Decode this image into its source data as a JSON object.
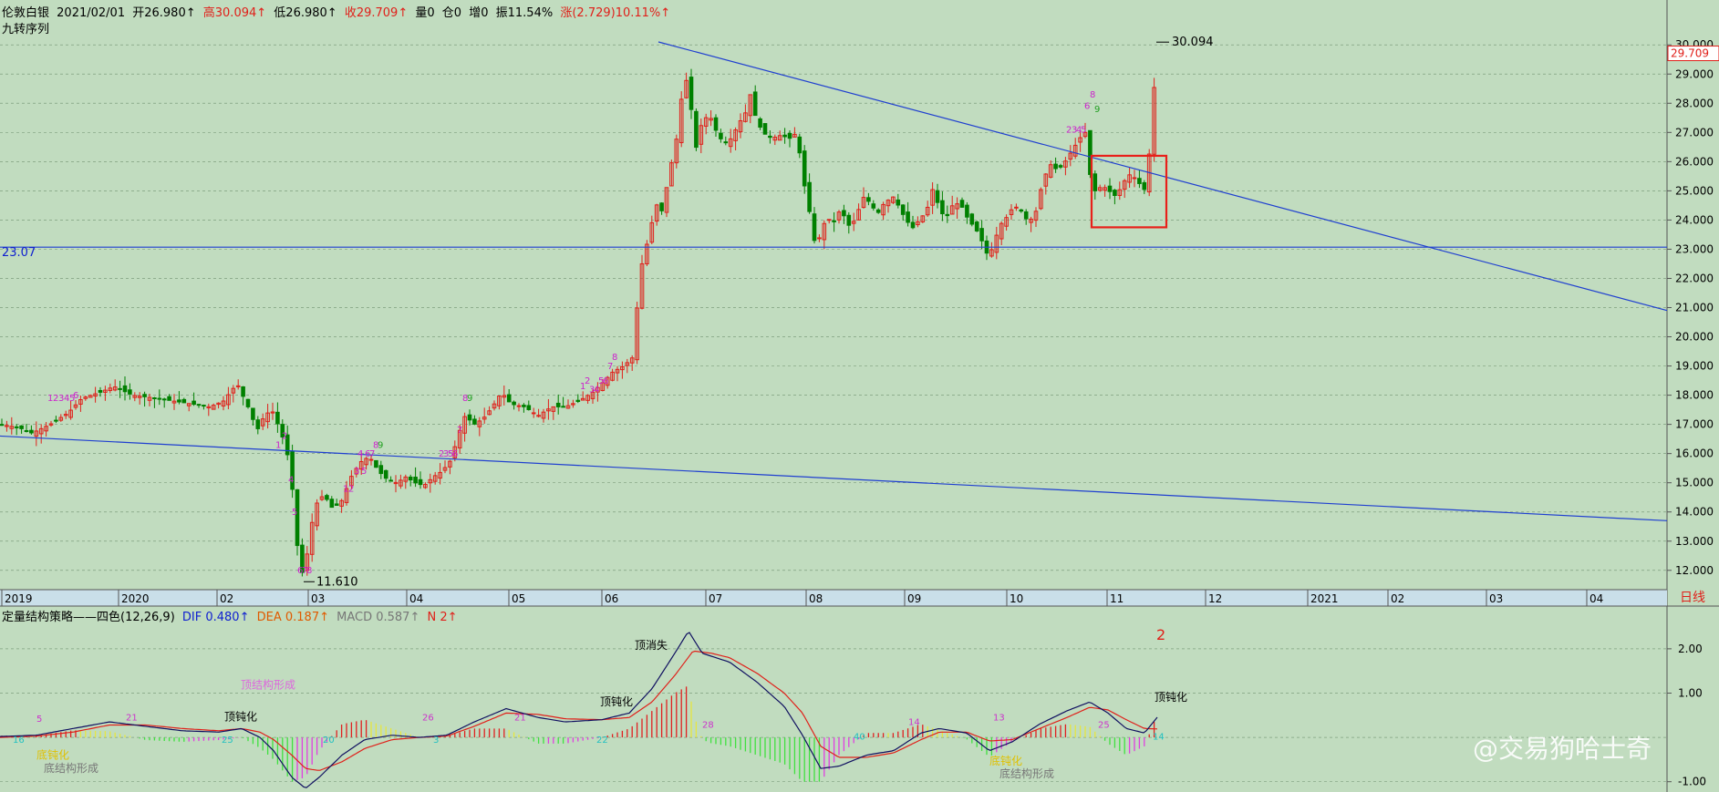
{
  "header": {
    "instrument": "伦敦白银",
    "date": "2021/02/01",
    "open": "开26.980↑",
    "high": "高30.094↑",
    "low": "低26.980↑",
    "close": "收29.709↑",
    "volume": "量0",
    "position": "仓0",
    "increase": "增0",
    "amplitude": "振11.54%",
    "change": "涨(2.729)10.11%↑"
  },
  "indicator_label": "九转序列",
  "macd_header": {
    "name": "定量结构策略——四色(12,26,9)",
    "dif": "DIF 0.480↑",
    "dea": "DEA 0.187↑",
    "macd": "MACD 0.587↑",
    "n": "N 2↑"
  },
  "period_label": "日线",
  "watermark": "@交易狗哈士奇",
  "colors": {
    "background": "#c1dcbf",
    "up": "#e0201a",
    "down": "#008000",
    "trendline": "#1f3fd0",
    "box": "#e8201a"
  },
  "chart_data": {
    "type": "candlestick",
    "ylim": [
      11.4,
      30.6
    ],
    "y_ticks": [
      "12.000",
      "13.000",
      "14.000",
      "15.000",
      "16.000",
      "17.000",
      "18.000",
      "19.000",
      "20.000",
      "21.000",
      "22.000",
      "23.000",
      "24.000",
      "25.000",
      "26.000",
      "27.000",
      "28.000",
      "29.000",
      "30.000"
    ],
    "x_labels": [
      "2019",
      "2020",
      "02",
      "03",
      "04",
      "05",
      "06",
      "07",
      "08",
      "09",
      "10",
      "11",
      "12",
      "2021",
      "02",
      "03",
      "04"
    ],
    "current_price": "29.709",
    "horizontal_line": {
      "value": 23.07,
      "label": "23.07"
    },
    "annotations": [
      {
        "label": "30.094",
        "value": 30.094
      },
      {
        "label": "11.610",
        "value": 11.61
      }
    ],
    "price_waypoints": [
      [
        0,
        17.0
      ],
      [
        20,
        16.9
      ],
      [
        35,
        16.7
      ],
      [
        55,
        17.0
      ],
      [
        75,
        17.4
      ],
      [
        90,
        17.9
      ],
      [
        110,
        18.1
      ],
      [
        125,
        18.3
      ],
      [
        145,
        18.0
      ],
      [
        170,
        17.9
      ],
      [
        190,
        17.8
      ],
      [
        210,
        17.7
      ],
      [
        230,
        17.6
      ],
      [
        245,
        17.8
      ],
      [
        260,
        18.4
      ],
      [
        272,
        17.6
      ],
      [
        282,
        16.8
      ],
      [
        290,
        17.3
      ],
      [
        298,
        17.5
      ],
      [
        306,
        16.9
      ],
      [
        314,
        16.2
      ],
      [
        320,
        15.0
      ],
      [
        324,
        13.5
      ],
      [
        328,
        12.2
      ],
      [
        333,
        11.8
      ],
      [
        338,
        12.8
      ],
      [
        345,
        14.2
      ],
      [
        355,
        14.6
      ],
      [
        365,
        14.1
      ],
      [
        375,
        14.4
      ],
      [
        385,
        15.2
      ],
      [
        395,
        15.7
      ],
      [
        405,
        15.9
      ],
      [
        415,
        15.4
      ],
      [
        425,
        15.1
      ],
      [
        435,
        15.0
      ],
      [
        445,
        15.2
      ],
      [
        455,
        15.0
      ],
      [
        465,
        14.9
      ],
      [
        475,
        15.2
      ],
      [
        485,
        15.4
      ],
      [
        495,
        15.8
      ],
      [
        502,
        16.6
      ],
      [
        510,
        17.3
      ],
      [
        520,
        17.0
      ],
      [
        530,
        17.2
      ],
      [
        540,
        17.6
      ],
      [
        550,
        18.1
      ],
      [
        560,
        17.7
      ],
      [
        575,
        17.6
      ],
      [
        590,
        17.3
      ],
      [
        605,
        17.6
      ],
      [
        620,
        17.6
      ],
      [
        635,
        17.8
      ],
      [
        650,
        18.1
      ],
      [
        660,
        18.4
      ],
      [
        672,
        18.8
      ],
      [
        684,
        19.0
      ],
      [
        694,
        19.3
      ],
      [
        700,
        21.5
      ],
      [
        706,
        23.0
      ],
      [
        712,
        23.3
      ],
      [
        718,
        24.6
      ],
      [
        726,
        24.3
      ],
      [
        734,
        25.6
      ],
      [
        742,
        26.8
      ],
      [
        749,
        28.6
      ],
      [
        755,
        28.9
      ],
      [
        762,
        26.3
      ],
      [
        770,
        27.4
      ],
      [
        778,
        27.6
      ],
      [
        786,
        27.0
      ],
      [
        794,
        26.6
      ],
      [
        802,
        26.8
      ],
      [
        810,
        27.3
      ],
      [
        818,
        27.7
      ],
      [
        822,
        28.4
      ],
      [
        828,
        27.6
      ],
      [
        836,
        27.0
      ],
      [
        846,
        26.8
      ],
      [
        856,
        26.9
      ],
      [
        866,
        26.8
      ],
      [
        874,
        27.0
      ],
      [
        878,
        26.0
      ],
      [
        882,
        25.2
      ],
      [
        887,
        24.4
      ],
      [
        893,
        23.3
      ],
      [
        899,
        23.4
      ],
      [
        906,
        24.1
      ],
      [
        914,
        23.9
      ],
      [
        922,
        24.4
      ],
      [
        930,
        23.8
      ],
      [
        938,
        24.0
      ],
      [
        946,
        24.8
      ],
      [
        954,
        24.6
      ],
      [
        962,
        24.2
      ],
      [
        970,
        24.6
      ],
      [
        980,
        24.8
      ],
      [
        990,
        24.2
      ],
      [
        1000,
        23.7
      ],
      [
        1008,
        24.0
      ],
      [
        1016,
        24.3
      ],
      [
        1024,
        25.2
      ],
      [
        1030,
        24.3
      ],
      [
        1038,
        24.1
      ],
      [
        1046,
        24.6
      ],
      [
        1054,
        24.5
      ],
      [
        1062,
        24.0
      ],
      [
        1070,
        23.7
      ],
      [
        1078,
        23.2
      ],
      [
        1084,
        22.7
      ],
      [
        1090,
        23.2
      ],
      [
        1096,
        23.8
      ],
      [
        1104,
        24.1
      ],
      [
        1112,
        24.5
      ],
      [
        1120,
        24.3
      ],
      [
        1128,
        23.9
      ],
      [
        1136,
        24.3
      ],
      [
        1144,
        25.4
      ],
      [
        1152,
        25.9
      ],
      [
        1160,
        25.7
      ],
      [
        1168,
        26.0
      ],
      [
        1176,
        26.4
      ],
      [
        1184,
        26.8
      ],
      [
        1190,
        27.0
      ],
      [
        1196,
        25.4
      ],
      [
        1202,
        24.9
      ],
      [
        1208,
        25.2
      ],
      [
        1216,
        25.0
      ],
      [
        1224,
        24.8
      ],
      [
        1232,
        25.3
      ],
      [
        1240,
        25.6
      ],
      [
        1248,
        25.3
      ],
      [
        1256,
        25.0
      ],
      [
        1262,
        26.8
      ],
      [
        1268,
        29.7
      ]
    ],
    "macd_ylim": [
      -1.15,
      2.45
    ],
    "macd_ticks": [
      "-1.00",
      "1.00",
      "2.00"
    ],
    "macd_dif_waypoints": [
      [
        0,
        0.02
      ],
      [
        40,
        0.05
      ],
      [
        80,
        0.2
      ],
      [
        120,
        0.35
      ],
      [
        160,
        0.25
      ],
      [
        200,
        0.15
      ],
      [
        240,
        0.12
      ],
      [
        265,
        0.2
      ],
      [
        285,
        0.0
      ],
      [
        300,
        -0.3
      ],
      [
        320,
        -0.9
      ],
      [
        335,
        -1.15
      ],
      [
        350,
        -0.9
      ],
      [
        375,
        -0.4
      ],
      [
        400,
        -0.05
      ],
      [
        430,
        0.05
      ],
      [
        460,
        0.0
      ],
      [
        490,
        0.05
      ],
      [
        520,
        0.35
      ],
      [
        555,
        0.65
      ],
      [
        590,
        0.45
      ],
      [
        620,
        0.35
      ],
      [
        660,
        0.4
      ],
      [
        690,
        0.55
      ],
      [
        715,
        1.1
      ],
      [
        740,
        1.9
      ],
      [
        755,
        2.4
      ],
      [
        770,
        1.9
      ],
      [
        800,
        1.7
      ],
      [
        830,
        1.25
      ],
      [
        860,
        0.7
      ],
      [
        880,
        0.05
      ],
      [
        900,
        -0.7
      ],
      [
        920,
        -0.65
      ],
      [
        950,
        -0.4
      ],
      [
        980,
        -0.3
      ],
      [
        1010,
        0.1
      ],
      [
        1030,
        0.2
      ],
      [
        1060,
        0.1
      ],
      [
        1085,
        -0.3
      ],
      [
        1110,
        -0.1
      ],
      [
        1140,
        0.3
      ],
      [
        1170,
        0.6
      ],
      [
        1195,
        0.8
      ],
      [
        1215,
        0.55
      ],
      [
        1235,
        0.2
      ],
      [
        1255,
        0.1
      ],
      [
        1270,
        0.48
      ]
    ],
    "macd_dea_waypoints": [
      [
        0,
        0.0
      ],
      [
        40,
        0.03
      ],
      [
        80,
        0.12
      ],
      [
        120,
        0.28
      ],
      [
        160,
        0.28
      ],
      [
        200,
        0.2
      ],
      [
        240,
        0.15
      ],
      [
        265,
        0.2
      ],
      [
        285,
        0.12
      ],
      [
        300,
        -0.05
      ],
      [
        320,
        -0.4
      ],
      [
        335,
        -0.7
      ],
      [
        350,
        -0.75
      ],
      [
        375,
        -0.55
      ],
      [
        400,
        -0.25
      ],
      [
        430,
        -0.05
      ],
      [
        460,
        0.0
      ],
      [
        490,
        0.03
      ],
      [
        520,
        0.25
      ],
      [
        555,
        0.55
      ],
      [
        590,
        0.52
      ],
      [
        620,
        0.42
      ],
      [
        660,
        0.4
      ],
      [
        690,
        0.45
      ],
      [
        715,
        0.8
      ],
      [
        740,
        1.4
      ],
      [
        760,
        1.95
      ],
      [
        780,
        1.9
      ],
      [
        800,
        1.8
      ],
      [
        830,
        1.45
      ],
      [
        860,
        1.0
      ],
      [
        880,
        0.55
      ],
      [
        900,
        -0.2
      ],
      [
        920,
        -0.45
      ],
      [
        950,
        -0.45
      ],
      [
        980,
        -0.35
      ],
      [
        1010,
        -0.05
      ],
      [
        1030,
        0.12
      ],
      [
        1060,
        0.12
      ],
      [
        1085,
        -0.08
      ],
      [
        1110,
        -0.05
      ],
      [
        1140,
        0.2
      ],
      [
        1170,
        0.45
      ],
      [
        1195,
        0.68
      ],
      [
        1215,
        0.62
      ],
      [
        1235,
        0.4
      ],
      [
        1255,
        0.2
      ],
      [
        1270,
        0.19
      ]
    ],
    "td_labels": [
      {
        "text": "1",
        "x": 52,
        "v": 17.8
      },
      {
        "text": "2",
        "x": 58,
        "v": 17.8
      },
      {
        "text": "3",
        "x": 64,
        "v": 17.8
      },
      {
        "text": "4",
        "x": 70,
        "v": 17.8
      },
      {
        "text": "5",
        "x": 76,
        "v": 17.8
      },
      {
        "text": "6",
        "x": 80,
        "v": 17.9
      },
      {
        "text": "1",
        "x": 302,
        "v": 16.2
      },
      {
        "text": "2",
        "x": 309,
        "v": 16.5
      },
      {
        "text": "4",
        "x": 316,
        "v": 15.0
      },
      {
        "text": "5",
        "x": 320,
        "v": 13.9
      },
      {
        "text": "6",
        "x": 326,
        "v": 11.9
      },
      {
        "text": "7",
        "x": 331,
        "v": 11.9
      },
      {
        "text": "8",
        "x": 336,
        "v": 11.9
      },
      {
        "text": "1",
        "x": 376,
        "v": 14.7
      },
      {
        "text": "2",
        "x": 382,
        "v": 14.7
      },
      {
        "text": "3",
        "x": 388,
        "v": 15.3
      },
      {
        "text": "4",
        "x": 392,
        "v": 15.9
      },
      {
        "text": "5",
        "x": 396,
        "v": 15.3
      },
      {
        "text": "6",
        "x": 400,
        "v": 15.9
      },
      {
        "text": "7",
        "x": 405,
        "v": 15.9
      },
      {
        "text": "8",
        "x": 409,
        "v": 16.2
      },
      {
        "text": "9",
        "x": 414,
        "v": 16.2
      },
      {
        "text": "2",
        "x": 481,
        "v": 15.9
      },
      {
        "text": "3",
        "x": 486,
        "v": 15.9
      },
      {
        "text": "5",
        "x": 491,
        "v": 15.9
      },
      {
        "text": "6",
        "x": 496,
        "v": 15.9
      },
      {
        "text": "7",
        "x": 501,
        "v": 16.7
      },
      {
        "text": "8",
        "x": 507,
        "v": 17.8
      },
      {
        "text": "9",
        "x": 512,
        "v": 17.8
      },
      {
        "text": "1",
        "x": 636,
        "v": 18.2
      },
      {
        "text": "2",
        "x": 641,
        "v": 18.4
      },
      {
        "text": "3",
        "x": 646,
        "v": 18.1
      },
      {
        "text": "4",
        "x": 651,
        "v": 18.1
      },
      {
        "text": "5",
        "x": 656,
        "v": 18.4
      },
      {
        "text": "6",
        "x": 661,
        "v": 18.4
      },
      {
        "text": "7",
        "x": 666,
        "v": 18.9
      },
      {
        "text": "8",
        "x": 671,
        "v": 19.2
      },
      {
        "text": "2",
        "x": 1169,
        "v": 27.0
      },
      {
        "text": "3",
        "x": 1175,
        "v": 27.0
      },
      {
        "text": "4",
        "x": 1180,
        "v": 27.0
      },
      {
        "text": "5",
        "x": 1185,
        "v": 27.0
      },
      {
        "text": "6",
        "x": 1189,
        "v": 27.8
      },
      {
        "text": "8",
        "x": 1195,
        "v": 28.2
      },
      {
        "text": "9",
        "x": 1200,
        "v": 27.7
      }
    ],
    "macd_labels": [
      {
        "text": "5",
        "x": 40,
        "v": 0.35,
        "c": "#cc33cc"
      },
      {
        "text": "16",
        "x": 14,
        "v": -0.12,
        "c": "#20c0c0"
      },
      {
        "text": "21",
        "x": 138,
        "v": 0.38,
        "c": "#cc33cc"
      },
      {
        "text": "25",
        "x": 243,
        "v": -0.12,
        "c": "#20c0c0"
      },
      {
        "text": "20",
        "x": 354,
        "v": -0.12,
        "c": "#20c0c0"
      },
      {
        "text": "26",
        "x": 463,
        "v": 0.38,
        "c": "#cc33cc"
      },
      {
        "text": "3",
        "x": 475,
        "v": -0.12,
        "c": "#20c0c0"
      },
      {
        "text": "21",
        "x": 564,
        "v": 0.38,
        "c": "#cc33cc"
      },
      {
        "text": "22",
        "x": 654,
        "v": -0.12,
        "c": "#20c0c0"
      },
      {
        "text": "28",
        "x": 770,
        "v": 0.22,
        "c": "#cc33cc"
      },
      {
        "text": "40",
        "x": 936,
        "v": -0.05,
        "c": "#20c0c0"
      },
      {
        "text": "14",
        "x": 996,
        "v": 0.28,
        "c": "#cc33cc"
      },
      {
        "text": "13",
        "x": 1089,
        "v": 0.38,
        "c": "#cc33cc"
      },
      {
        "text": "25",
        "x": 1204,
        "v": 0.22,
        "c": "#cc33cc"
      },
      {
        "text": "14",
        "x": 1264,
        "v": -0.05,
        "c": "#20c0c0"
      }
    ],
    "macd_texts": [
      {
        "text": "顶消失",
        "x": 696,
        "v": 2.0,
        "c": "#000000"
      },
      {
        "text": "顶钝化",
        "x": 658,
        "v": 0.72,
        "c": "#000000"
      },
      {
        "text": "顶钝化",
        "x": 246,
        "v": 0.38,
        "c": "#000000"
      },
      {
        "text": "顶钝化",
        "x": 1266,
        "v": 0.82,
        "c": "#000000"
      },
      {
        "text": "顶结构形成",
        "x": 264,
        "v": 1.1,
        "c": "#dd66dd"
      },
      {
        "text": "底钝化",
        "x": 40,
        "v": -0.48,
        "c": "#e0c000"
      },
      {
        "text": "底结构形成",
        "x": 48,
        "v": -0.78,
        "c": "#777777"
      },
      {
        "text": "底钝化",
        "x": 1085,
        "v": -0.62,
        "c": "#e0c000"
      },
      {
        "text": "底结构形成",
        "x": 1096,
        "v": -0.9,
        "c": "#777777"
      },
      {
        "text": "2",
        "x": 1268,
        "v": 2.2,
        "c": "#e0201a"
      }
    ]
  }
}
